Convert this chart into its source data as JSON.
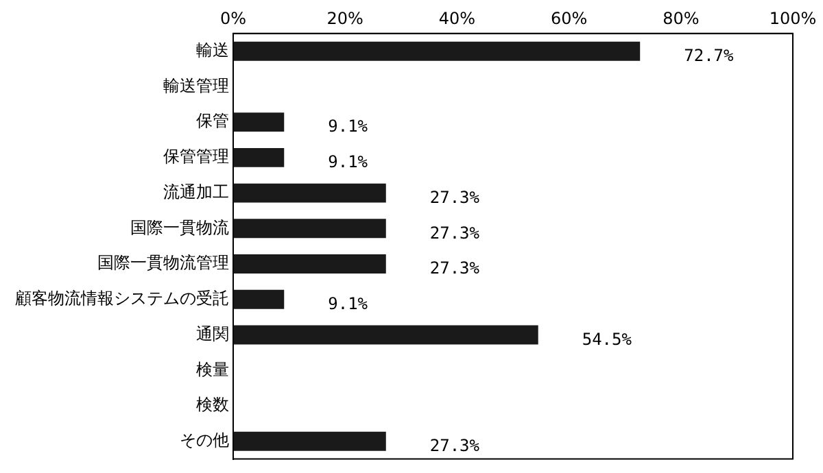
{
  "chart_data": {
    "type": "bar",
    "orientation": "horizontal",
    "categories": [
      "輸送",
      "輸送管理",
      "保管",
      "保管管理",
      "流通加工",
      "国際一貫物流",
      "国際一貫物流管理",
      "顧客物流情報システムの受託",
      "通関",
      "検量",
      "検数",
      "その他"
    ],
    "values": [
      72.7,
      0,
      9.1,
      9.1,
      27.3,
      27.3,
      27.3,
      9.1,
      54.5,
      0,
      0,
      27.3
    ],
    "value_labels": [
      "72.7%",
      null,
      "9.1%",
      "9.1%",
      "27.3%",
      "27.3%",
      "27.3%",
      "9.1%",
      "54.5%",
      null,
      null,
      "27.3%"
    ],
    "color": "#1a1a1a",
    "xlim": [
      0,
      100
    ],
    "xticks": [
      {
        "value": 0,
        "label": "0%"
      },
      {
        "value": 20,
        "label": "20%"
      },
      {
        "value": 40,
        "label": "40%"
      },
      {
        "value": 60,
        "label": "60%"
      },
      {
        "value": 80,
        "label": "80%"
      },
      {
        "value": 100,
        "label": "100%"
      }
    ],
    "grid": false,
    "legend": false
  }
}
